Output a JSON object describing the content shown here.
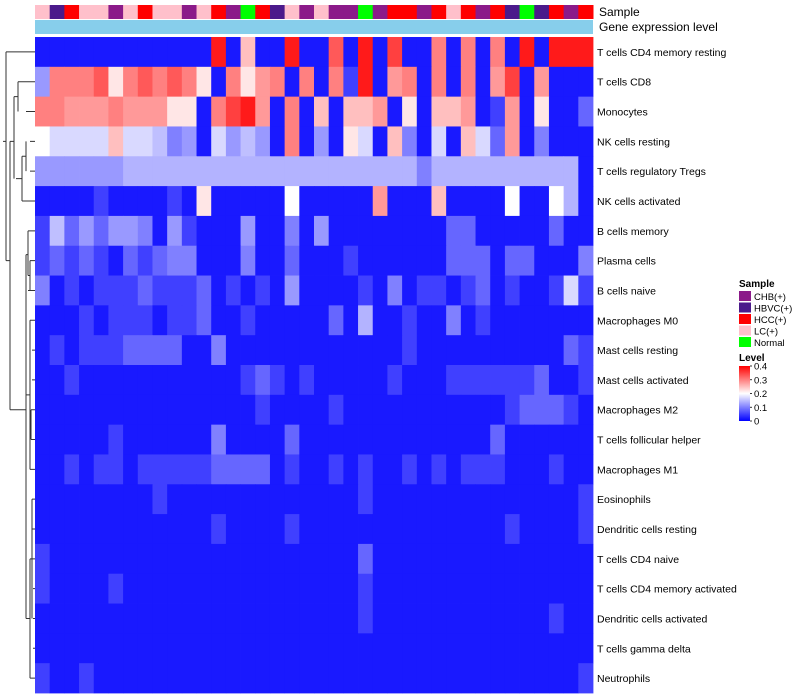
{
  "chart_data": {
    "type": "heatmap",
    "annotation_labels": [
      "Sample",
      "Gene expression level"
    ],
    "columns": 38,
    "rows": [
      "T cells CD4 memory resting",
      "T cells CD8",
      "Monocytes",
      "NK cells resting",
      "T cells regulatory  Tregs",
      "NK cells activated",
      "B cells memory",
      "Plasma cells",
      "B cells naive",
      "Macrophages M0",
      "Mast cells resting",
      "Mast cells activated",
      "Macrophages M2",
      "T cells follicular helper",
      "Macrophages M1",
      "Eosinophils",
      "Dendritic cells resting",
      "T cells CD4 naive",
      "T cells CD4 memory activated",
      "Dendritic cells activated",
      "T cells gamma delta",
      "Neutrophils"
    ],
    "sample_annotation": [
      "LC(+)",
      "HBVC(+)",
      "HCC(+)",
      "LC(+)",
      "LC(+)",
      "CHB(+)",
      "LC(+)",
      "HCC(+)",
      "LC(+)",
      "LC(+)",
      "CHB(+)",
      "LC(+)",
      "HCC(+)",
      "CHB(+)",
      "Normal",
      "HCC(+)",
      "HBVC(+)",
      "LC(+)",
      "CHB(+)",
      "LC(+)",
      "CHB(+)",
      "CHB(+)",
      "Normal",
      "CHB(+)",
      "HCC(+)",
      "HCC(+)",
      "CHB(+)",
      "HCC(+)",
      "LC(+)",
      "HCC(+)",
      "CHB(+)",
      "HCC(+)",
      "HBVC(+)",
      "Normal",
      "HBVC(+)",
      "HCC(+)",
      "CHB(+)",
      "HCC(+)"
    ],
    "values": [
      [
        0.02,
        0.02,
        0.02,
        0.02,
        0.02,
        0.02,
        0.02,
        0.02,
        0.02,
        0.02,
        0.02,
        0.02,
        0.38,
        0.02,
        0.25,
        0.02,
        0.02,
        0.38,
        0.02,
        0.02,
        0.33,
        0.02,
        0.38,
        0.02,
        0.35,
        0.02,
        0.02,
        0.3,
        0.02,
        0.3,
        0.02,
        0.3,
        0.02,
        0.38,
        0.02,
        0.38,
        0.38,
        0.38
      ],
      [
        0.12,
        0.3,
        0.3,
        0.3,
        0.33,
        0.22,
        0.3,
        0.33,
        0.3,
        0.33,
        0.3,
        0.22,
        0.02,
        0.3,
        0.22,
        0.28,
        0.3,
        0.02,
        0.3,
        0.02,
        0.3,
        0.05,
        0.38,
        0.02,
        0.28,
        0.3,
        0.02,
        0.3,
        0.02,
        0.3,
        0.02,
        0.28,
        0.35,
        0.02,
        0.28,
        0.02,
        0.02,
        0.02
      ],
      [
        0.3,
        0.3,
        0.28,
        0.28,
        0.28,
        0.3,
        0.28,
        0.28,
        0.28,
        0.22,
        0.22,
        0.02,
        0.3,
        0.35,
        0.38,
        0.28,
        0.02,
        0.3,
        0.02,
        0.25,
        0.02,
        0.25,
        0.25,
        0.28,
        0.02,
        0.22,
        0.02,
        0.25,
        0.25,
        0.28,
        0.02,
        0.05,
        0.28,
        0.02,
        0.22,
        0.02,
        0.02,
        0.08
      ],
      [
        0.2,
        0.17,
        0.17,
        0.17,
        0.17,
        0.25,
        0.17,
        0.17,
        0.15,
        0.1,
        0.12,
        0.02,
        0.17,
        0.12,
        0.15,
        0.12,
        0.02,
        0.3,
        0.02,
        0.12,
        0.02,
        0.22,
        0.17,
        0.02,
        0.25,
        0.1,
        0.02,
        0.17,
        0.02,
        0.25,
        0.17,
        0.08,
        0.28,
        0.02,
        0.1,
        0.02,
        0.02,
        0.02
      ],
      [
        0.12,
        0.12,
        0.12,
        0.12,
        0.12,
        0.12,
        0.14,
        0.14,
        0.14,
        0.14,
        0.14,
        0.14,
        0.14,
        0.14,
        0.14,
        0.14,
        0.14,
        0.14,
        0.14,
        0.14,
        0.14,
        0.14,
        0.14,
        0.14,
        0.14,
        0.14,
        0.1,
        0.14,
        0.14,
        0.14,
        0.14,
        0.14,
        0.14,
        0.14,
        0.14,
        0.14,
        0.14,
        0.02
      ],
      [
        0.02,
        0.02,
        0.02,
        0.02,
        0.05,
        0.02,
        0.02,
        0.02,
        0.02,
        0.05,
        0.02,
        0.22,
        0.02,
        0.02,
        0.02,
        0.02,
        0.02,
        0.2,
        0.02,
        0.02,
        0.02,
        0.02,
        0.02,
        0.28,
        0.02,
        0.02,
        0.02,
        0.25,
        0.02,
        0.02,
        0.02,
        0.02,
        0.2,
        0.02,
        0.02,
        0.2,
        0.14,
        0.02
      ],
      [
        0.05,
        0.15,
        0.08,
        0.12,
        0.08,
        0.12,
        0.12,
        0.1,
        0.02,
        0.12,
        0.05,
        0.02,
        0.02,
        0.02,
        0.12,
        0.02,
        0.02,
        0.1,
        0.02,
        0.12,
        0.02,
        0.02,
        0.02,
        0.02,
        0.02,
        0.02,
        0.02,
        0.02,
        0.08,
        0.08,
        0.02,
        0.02,
        0.02,
        0.02,
        0.02,
        0.08,
        0.02,
        0.02
      ],
      [
        0.05,
        0.08,
        0.05,
        0.08,
        0.05,
        0.02,
        0.08,
        0.05,
        0.08,
        0.1,
        0.1,
        0.02,
        0.02,
        0.02,
        0.1,
        0.02,
        0.02,
        0.08,
        0.02,
        0.02,
        0.02,
        0.05,
        0.02,
        0.02,
        0.02,
        0.02,
        0.02,
        0.02,
        0.08,
        0.08,
        0.08,
        0.02,
        0.08,
        0.08,
        0.02,
        0.02,
        0.02,
        0.1
      ],
      [
        0.1,
        0.02,
        0.05,
        0.02,
        0.05,
        0.05,
        0.05,
        0.08,
        0.05,
        0.05,
        0.05,
        0.08,
        0.02,
        0.05,
        0.02,
        0.05,
        0.02,
        0.12,
        0.02,
        0.02,
        0.02,
        0.02,
        0.05,
        0.02,
        0.1,
        0.02,
        0.05,
        0.05,
        0.02,
        0.05,
        0.08,
        0.02,
        0.05,
        0.02,
        0.02,
        0.05,
        0.17,
        0.05
      ],
      [
        0.02,
        0.02,
        0.02,
        0.05,
        0.02,
        0.05,
        0.05,
        0.05,
        0.02,
        0.05,
        0.05,
        0.08,
        0.02,
        0.02,
        0.05,
        0.02,
        0.02,
        0.02,
        0.02,
        0.02,
        0.08,
        0.02,
        0.14,
        0.02,
        0.02,
        0.05,
        0.02,
        0.02,
        0.1,
        0.02,
        0.05,
        0.02,
        0.02,
        0.02,
        0.02,
        0.02,
        0.02,
        0.02
      ],
      [
        0.02,
        0.05,
        0.02,
        0.05,
        0.05,
        0.05,
        0.08,
        0.08,
        0.08,
        0.08,
        0.02,
        0.02,
        0.1,
        0.02,
        0.02,
        0.02,
        0.02,
        0.02,
        0.02,
        0.02,
        0.02,
        0.02,
        0.02,
        0.02,
        0.02,
        0.05,
        0.02,
        0.02,
        0.02,
        0.02,
        0.02,
        0.02,
        0.02,
        0.02,
        0.02,
        0.02,
        0.08,
        0.05
      ],
      [
        0.02,
        0.02,
        0.05,
        0.02,
        0.02,
        0.02,
        0.02,
        0.02,
        0.02,
        0.02,
        0.02,
        0.02,
        0.02,
        0.02,
        0.05,
        0.08,
        0.05,
        0.02,
        0.05,
        0.02,
        0.02,
        0.02,
        0.02,
        0.02,
        0.05,
        0.02,
        0.02,
        0.02,
        0.05,
        0.05,
        0.05,
        0.05,
        0.05,
        0.05,
        0.08,
        0.02,
        0.02,
        0.05
      ],
      [
        0.02,
        0.02,
        0.02,
        0.02,
        0.02,
        0.02,
        0.02,
        0.02,
        0.02,
        0.02,
        0.02,
        0.02,
        0.02,
        0.02,
        0.02,
        0.05,
        0.02,
        0.02,
        0.02,
        0.02,
        0.05,
        0.02,
        0.02,
        0.02,
        0.02,
        0.02,
        0.02,
        0.02,
        0.02,
        0.02,
        0.02,
        0.02,
        0.05,
        0.08,
        0.08,
        0.08,
        0.05,
        0.02
      ],
      [
        0.02,
        0.02,
        0.02,
        0.02,
        0.02,
        0.05,
        0.02,
        0.02,
        0.02,
        0.02,
        0.02,
        0.02,
        0.1,
        0.02,
        0.02,
        0.02,
        0.02,
        0.08,
        0.02,
        0.02,
        0.02,
        0.02,
        0.02,
        0.02,
        0.02,
        0.02,
        0.02,
        0.02,
        0.02,
        0.02,
        0.02,
        0.08,
        0.02,
        0.02,
        0.02,
        0.02,
        0.02,
        0.02
      ],
      [
        0.02,
        0.02,
        0.05,
        0.02,
        0.05,
        0.05,
        0.02,
        0.05,
        0.05,
        0.05,
        0.05,
        0.05,
        0.08,
        0.08,
        0.08,
        0.08,
        0.02,
        0.05,
        0.02,
        0.02,
        0.05,
        0.02,
        0.05,
        0.02,
        0.02,
        0.05,
        0.02,
        0.05,
        0.02,
        0.05,
        0.05,
        0.05,
        0.02,
        0.02,
        0.02,
        0.05,
        0.02,
        0.02
      ],
      [
        0.02,
        0.02,
        0.02,
        0.02,
        0.02,
        0.02,
        0.02,
        0.02,
        0.05,
        0.02,
        0.02,
        0.02,
        0.02,
        0.02,
        0.02,
        0.02,
        0.02,
        0.02,
        0.02,
        0.02,
        0.02,
        0.02,
        0.05,
        0.02,
        0.02,
        0.02,
        0.02,
        0.02,
        0.02,
        0.02,
        0.02,
        0.02,
        0.02,
        0.02,
        0.02,
        0.02,
        0.02,
        0.05
      ],
      [
        0.02,
        0.02,
        0.02,
        0.02,
        0.02,
        0.02,
        0.02,
        0.02,
        0.02,
        0.02,
        0.02,
        0.02,
        0.05,
        0.02,
        0.02,
        0.02,
        0.02,
        0.05,
        0.02,
        0.02,
        0.02,
        0.02,
        0.02,
        0.02,
        0.02,
        0.02,
        0.02,
        0.02,
        0.02,
        0.02,
        0.02,
        0.02,
        0.05,
        0.02,
        0.02,
        0.02,
        0.02,
        0.05
      ],
      [
        0.05,
        0.02,
        0.02,
        0.02,
        0.02,
        0.02,
        0.02,
        0.02,
        0.02,
        0.02,
        0.02,
        0.02,
        0.02,
        0.02,
        0.02,
        0.02,
        0.02,
        0.02,
        0.02,
        0.02,
        0.02,
        0.02,
        0.08,
        0.02,
        0.02,
        0.02,
        0.02,
        0.02,
        0.02,
        0.02,
        0.02,
        0.02,
        0.02,
        0.02,
        0.02,
        0.02,
        0.02,
        0.02
      ],
      [
        0.05,
        0.02,
        0.02,
        0.02,
        0.02,
        0.05,
        0.02,
        0.02,
        0.02,
        0.02,
        0.02,
        0.02,
        0.02,
        0.02,
        0.02,
        0.02,
        0.02,
        0.02,
        0.02,
        0.02,
        0.02,
        0.02,
        0.05,
        0.02,
        0.02,
        0.02,
        0.02,
        0.02,
        0.02,
        0.02,
        0.02,
        0.02,
        0.02,
        0.02,
        0.02,
        0.02,
        0.02,
        0.02
      ],
      [
        0.02,
        0.02,
        0.02,
        0.02,
        0.02,
        0.02,
        0.02,
        0.02,
        0.02,
        0.02,
        0.02,
        0.02,
        0.02,
        0.02,
        0.02,
        0.02,
        0.02,
        0.02,
        0.02,
        0.02,
        0.02,
        0.02,
        0.05,
        0.02,
        0.02,
        0.02,
        0.02,
        0.02,
        0.02,
        0.02,
        0.02,
        0.02,
        0.02,
        0.02,
        0.02,
        0.05,
        0.02,
        0.02
      ],
      [
        0.02,
        0.02,
        0.02,
        0.02,
        0.02,
        0.02,
        0.02,
        0.02,
        0.02,
        0.02,
        0.02,
        0.02,
        0.02,
        0.02,
        0.02,
        0.02,
        0.02,
        0.02,
        0.02,
        0.02,
        0.02,
        0.02,
        0.02,
        0.02,
        0.02,
        0.02,
        0.02,
        0.02,
        0.02,
        0.02,
        0.02,
        0.02,
        0.02,
        0.02,
        0.02,
        0.02,
        0.02,
        0.02
      ],
      [
        0.05,
        0.02,
        0.02,
        0.05,
        0.02,
        0.02,
        0.02,
        0.02,
        0.02,
        0.02,
        0.02,
        0.02,
        0.02,
        0.02,
        0.02,
        0.02,
        0.02,
        0.02,
        0.02,
        0.02,
        0.02,
        0.02,
        0.02,
        0.02,
        0.02,
        0.02,
        0.02,
        0.02,
        0.02,
        0.02,
        0.02,
        0.02,
        0.02,
        0.02,
        0.02,
        0.02,
        0.02,
        0.05
      ]
    ],
    "color_scale": {
      "min": 0,
      "mid": 0.2,
      "max": 0.4,
      "low": "#0000FF",
      "midColor": "#FFFFFF",
      "high": "#FF0000"
    },
    "annotation_colors": {
      "CHB(+)": "#8B1A89",
      "HBVC(+)": "#4B1A8B",
      "HCC(+)": "#FF0000",
      "LC(+)": "#FFC0CB",
      "Normal": "#00FF00"
    },
    "expression_bar_color": "#87CEEB",
    "legend": {
      "sample_title": "Sample",
      "sample_entries": [
        "CHB(+)",
        "HBVC(+)",
        "HCC(+)",
        "LC(+)",
        "Normal"
      ],
      "level_title": "Level",
      "level_ticks": [
        0,
        0.1,
        0.2,
        0.3,
        0.4
      ],
      "level_tick_labels": [
        "0",
        "0.1",
        "0.2",
        "0.3",
        "0.4"
      ]
    }
  }
}
